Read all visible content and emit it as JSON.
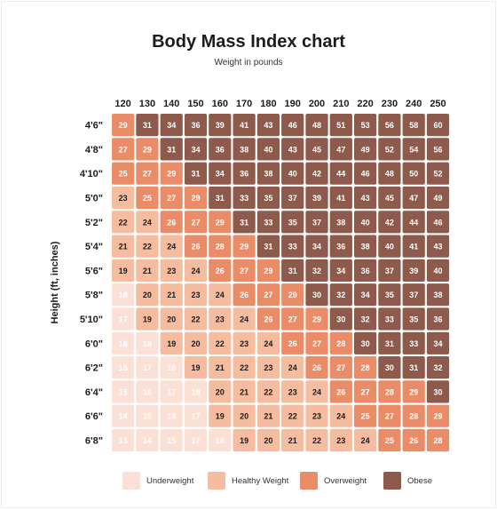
{
  "chart_data": {
    "type": "heatmap",
    "title": "Body Mass Index chart",
    "subtitle": "Weight in pounds",
    "xlabel": "Weight in pounds",
    "ylabel": "Height (ft, inches)",
    "x": [
      120,
      130,
      140,
      150,
      160,
      170,
      180,
      190,
      200,
      210,
      220,
      230,
      240,
      250
    ],
    "y": [
      "4'6\"",
      "4'8\"",
      "4'10\"",
      "5'0\"",
      "5'2\"",
      "5'4\"",
      "5'6\"",
      "5'8\"",
      "5'10\"",
      "6'0\"",
      "6'2\"",
      "6'4\"",
      "6'6\"",
      "6'8\""
    ],
    "values": [
      [
        29,
        31,
        34,
        36,
        39,
        41,
        43,
        46,
        48,
        51,
        53,
        56,
        58,
        60
      ],
      [
        27,
        29,
        31,
        34,
        36,
        38,
        40,
        43,
        45,
        47,
        49,
        52,
        54,
        56
      ],
      [
        25,
        27,
        29,
        31,
        34,
        36,
        38,
        40,
        42,
        44,
        46,
        48,
        50,
        52
      ],
      [
        23,
        25,
        27,
        29,
        31,
        33,
        35,
        37,
        39,
        41,
        43,
        45,
        47,
        49
      ],
      [
        22,
        24,
        26,
        27,
        29,
        31,
        33,
        35,
        37,
        38,
        40,
        42,
        44,
        46
      ],
      [
        21,
        22,
        24,
        26,
        28,
        29,
        31,
        33,
        34,
        36,
        38,
        40,
        41,
        43
      ],
      [
        19,
        21,
        23,
        24,
        26,
        27,
        29,
        31,
        32,
        34,
        36,
        37,
        39,
        40
      ],
      [
        18,
        20,
        21,
        23,
        24,
        26,
        27,
        29,
        30,
        32,
        34,
        35,
        37,
        38
      ],
      [
        17,
        19,
        20,
        22,
        23,
        24,
        26,
        27,
        29,
        30,
        32,
        33,
        35,
        36
      ],
      [
        16,
        18,
        19,
        20,
        22,
        23,
        24,
        26,
        27,
        28,
        30,
        31,
        33,
        34
      ],
      [
        15,
        17,
        18,
        19,
        21,
        22,
        23,
        24,
        26,
        27,
        28,
        30,
        31,
        32
      ],
      [
        15,
        16,
        17,
        18,
        20,
        21,
        22,
        23,
        24,
        26,
        27,
        28,
        29,
        30
      ],
      [
        14,
        15,
        16,
        17,
        19,
        20,
        21,
        22,
        23,
        24,
        25,
        27,
        28,
        29
      ],
      [
        13,
        14,
        15,
        17,
        18,
        19,
        20,
        21,
        22,
        23,
        24,
        25,
        26,
        28
      ]
    ],
    "categories": [
      {
        "name": "Underweight",
        "max_below": 18.5,
        "color": "#FBE0D6",
        "text_color": "#ffffff"
      },
      {
        "name": "Healthy Weight",
        "max_below": 25,
        "color": "#F5BC9F",
        "text_color": "#1c1c1c"
      },
      {
        "name": "Overweight",
        "max_below": 30,
        "color": "#EA8C68",
        "text_color": "#ffffff"
      },
      {
        "name": "Obese",
        "max_below": null,
        "color": "#8E5A4B",
        "text_color": "#ffffff"
      }
    ],
    "legend_position": "bottom"
  }
}
